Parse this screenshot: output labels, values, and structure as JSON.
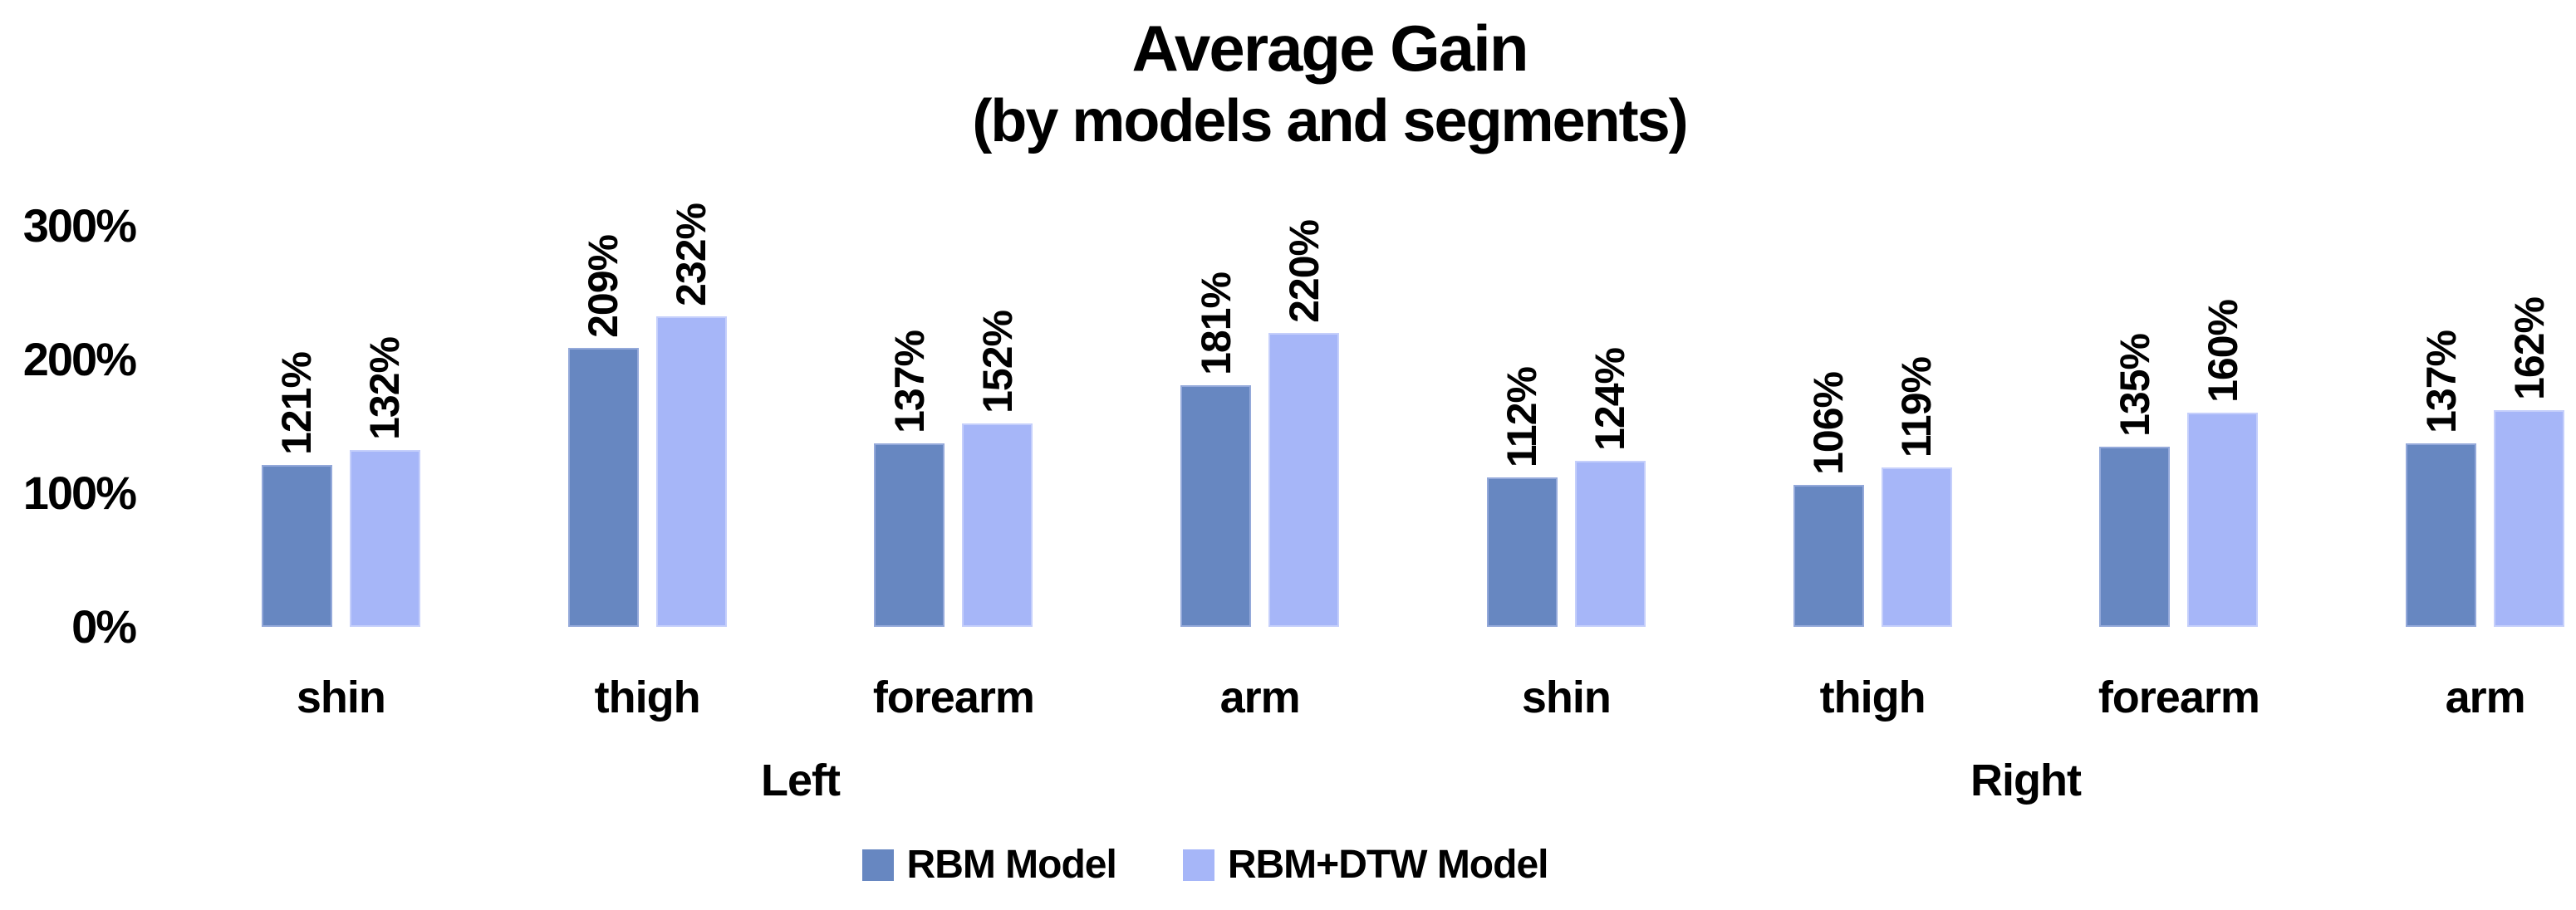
{
  "chart_data": {
    "type": "bar",
    "title": "Average Gain",
    "subtitle": "(by models and segments)",
    "value_suffix": "%",
    "y_ticks": [
      300,
      200,
      100,
      0
    ],
    "ylim": [
      0,
      300
    ],
    "grid": false,
    "legend_position": "bottom",
    "group_labels": [
      "Left",
      "Right"
    ],
    "categories": [
      "shin",
      "thigh",
      "forearm",
      "arm",
      "shin",
      "thigh",
      "forearm",
      "arm"
    ],
    "series": [
      {
        "name": "RBM Model",
        "key": "rbm",
        "color": "#6787C1",
        "border_color": "#94A9DA",
        "values": [
          121,
          209,
          137,
          181,
          112,
          106,
          135,
          137
        ]
      },
      {
        "name": "RBM+DTW Model",
        "key": "rbm-dtw",
        "color": "#A6B6F8",
        "border_color": "#C5CFFB",
        "values": [
          132,
          232,
          152,
          220,
          124,
          119,
          160,
          162
        ]
      }
    ]
  }
}
